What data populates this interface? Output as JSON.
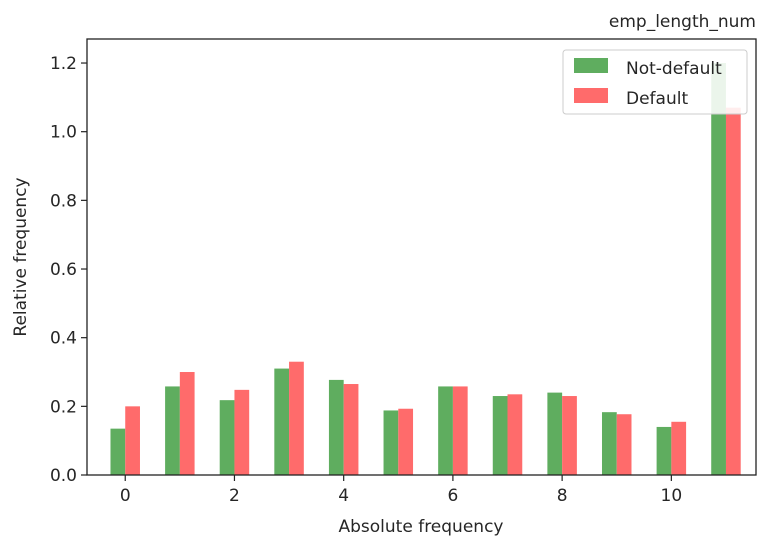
{
  "chart_data": {
    "type": "bar",
    "title": "emp_length_num",
    "xlabel": "Absolute frequency",
    "ylabel": "Relative frequency",
    "xlim": [
      -0.7,
      11.55
    ],
    "ylim": [
      0,
      1.27
    ],
    "x": [
      0,
      1,
      2,
      3,
      4,
      5,
      6,
      7,
      8,
      9,
      10,
      11
    ],
    "series": [
      {
        "name": "Not-default",
        "color": "#5fad5f",
        "values": [
          0.135,
          0.258,
          0.218,
          0.31,
          0.277,
          0.188,
          0.258,
          0.23,
          0.24,
          0.183,
          0.14,
          1.2
        ]
      },
      {
        "name": "Default",
        "color": "#ff6b6b",
        "values": [
          0.2,
          0.3,
          0.248,
          0.33,
          0.265,
          0.193,
          0.258,
          0.235,
          0.23,
          0.177,
          0.155,
          1.07
        ]
      }
    ],
    "xticks": [
      0,
      2,
      4,
      6,
      8,
      10
    ],
    "yticks": [
      0.0,
      0.2,
      0.4,
      0.6,
      0.8,
      1.0,
      1.2
    ],
    "xtick_labels": [
      "0",
      "2",
      "4",
      "6",
      "8",
      "10"
    ],
    "ytick_labels": [
      "0.0",
      "0.2",
      "0.4",
      "0.6",
      "0.8",
      "1.0",
      "1.2"
    ],
    "grid": false,
    "legend_position": "top-right"
  }
}
